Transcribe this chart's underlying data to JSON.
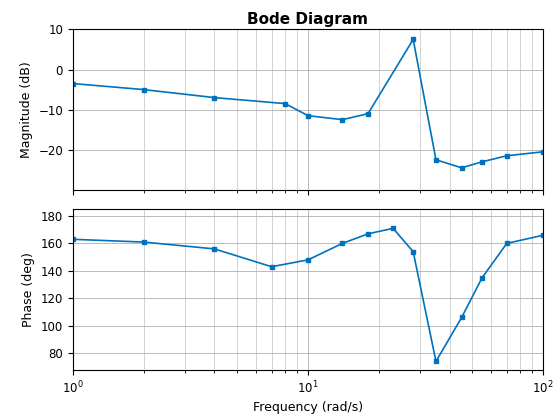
{
  "title": "Bode Diagram",
  "xlabel": "Frequency (rad/s)",
  "ylabel_mag": "Magnitude (dB)",
  "ylabel_phase": "Phase (deg)",
  "line_color": "#0072bd",
  "background_color": "#ffffff",
  "grid_color": "#b0b0b0",
  "mag_freq": [
    1.0,
    2.0,
    4.0,
    8.0,
    10.0,
    14.0,
    18.0,
    28.0,
    35.0,
    45.0,
    55.0,
    70.0,
    100.0
  ],
  "mag_values": [
    -3.5,
    -5.0,
    -7.0,
    -8.5,
    -11.5,
    -12.5,
    -11.0,
    7.5,
    -22.5,
    -24.5,
    -23.0,
    -21.5,
    -20.5
  ],
  "phase_freq": [
    1.0,
    2.0,
    4.0,
    7.0,
    10.0,
    14.0,
    18.0,
    23.0,
    28.0,
    35.0,
    45.0,
    55.0,
    70.0,
    100.0
  ],
  "phase_values": [
    163.0,
    161.0,
    156.0,
    143.0,
    148.0,
    160.0,
    167.0,
    171.0,
    154.0,
    74.0,
    106.0,
    135.0,
    160.0,
    166.0
  ],
  "mag_ylim": [
    -30,
    10
  ],
  "mag_yticks": [
    10,
    0,
    -10,
    -20
  ],
  "phase_ylim": [
    68,
    185
  ],
  "phase_yticks": [
    80,
    100,
    120,
    140,
    160,
    180
  ],
  "xlim": [
    1.0,
    100.0
  ],
  "figsize": [
    5.6,
    4.2
  ],
  "dpi": 100
}
